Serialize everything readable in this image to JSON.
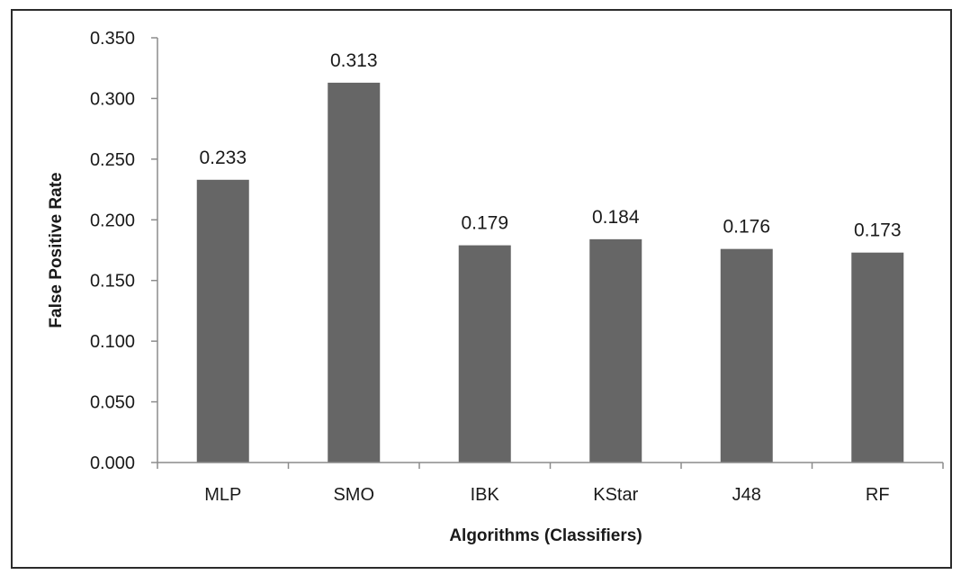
{
  "chart_data": {
    "type": "bar",
    "categories": [
      "MLP",
      "SMO",
      "IBK",
      "KStar",
      "J48",
      "RF"
    ],
    "values": [
      0.233,
      0.313,
      0.179,
      0.184,
      0.176,
      0.173
    ],
    "data_labels": [
      "0.233",
      "0.313",
      "0.179",
      "0.184",
      "0.176",
      "0.173"
    ],
    "title": "",
    "xlabel": "Algorithms (Classifiers)",
    "ylabel": "False Positive Rate",
    "ylim": [
      0,
      0.35
    ],
    "y_ticks": [
      0,
      0.05,
      0.1,
      0.15,
      0.2,
      0.25,
      0.3,
      0.35
    ],
    "y_tick_labels": [
      "0.000",
      "0.050",
      "0.100",
      "0.150",
      "0.200",
      "0.250",
      "0.300",
      "0.350"
    ],
    "grid": false,
    "legend": "none",
    "bar_color": "#666666"
  }
}
